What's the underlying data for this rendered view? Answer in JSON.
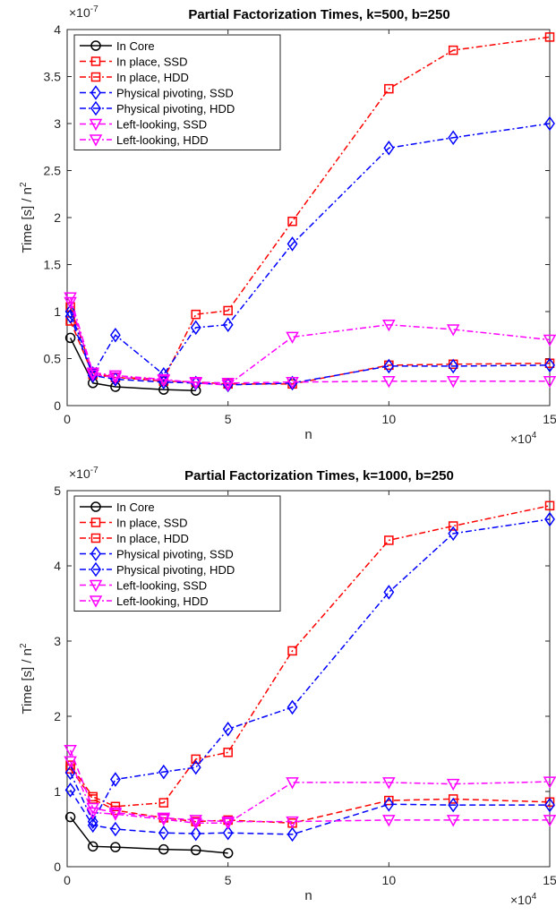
{
  "chart_data": [
    {
      "type": "line",
      "title": "Partial Factorization Times, k=500, b=250",
      "xlabel": "n",
      "ylabel": "Time [s] / n^2",
      "x_exponent": "×10^4",
      "y_exponent": "×10^-7",
      "xlim": [
        0,
        15
      ],
      "ylim": [
        0,
        4
      ],
      "xticks": [
        0,
        5,
        10,
        15
      ],
      "yticks": [
        0,
        0.5,
        1,
        1.5,
        2,
        2.5,
        3,
        3.5,
        4
      ],
      "legend_position": "top-left",
      "grid": false,
      "series": [
        {
          "name": "In Core",
          "color": "#000000",
          "dash": "solid",
          "marker": "circle",
          "x": [
            0.1,
            0.8,
            1.5,
            3,
            4
          ],
          "y": [
            0.72,
            0.24,
            0.2,
            0.17,
            0.16
          ]
        },
        {
          "name": "In place, SSD",
          "color": "#ff0000",
          "dash": "dashed",
          "marker": "square",
          "x": [
            0.1,
            0.8,
            1.5,
            3,
            4,
            5,
            7,
            10,
            12,
            15
          ],
          "y": [
            0.9,
            0.33,
            0.3,
            0.26,
            0.25,
            0.23,
            0.23,
            0.43,
            0.44,
            0.45
          ]
        },
        {
          "name": "In place, HDD",
          "color": "#ff0000",
          "dash": "dashdot",
          "marker": "square",
          "x": [
            0.1,
            0.8,
            1.5,
            3,
            4,
            5,
            7,
            10,
            12,
            15
          ],
          "y": [
            1.05,
            0.35,
            0.3,
            0.28,
            0.97,
            1.01,
            1.96,
            3.37,
            3.78,
            3.92
          ]
        },
        {
          "name": "Physical pivoting, SSD",
          "color": "#0000ff",
          "dash": "dashed",
          "marker": "diamond",
          "x": [
            0.1,
            0.8,
            1.5,
            3,
            4,
            5,
            7,
            10,
            12,
            15
          ],
          "y": [
            0.95,
            0.32,
            0.28,
            0.25,
            0.24,
            0.22,
            0.24,
            0.42,
            0.42,
            0.43
          ]
        },
        {
          "name": "Physical pivoting, HDD",
          "color": "#0000ff",
          "dash": "dashdot",
          "marker": "diamond",
          "x": [
            0.1,
            0.8,
            1.5,
            3,
            4,
            5,
            7,
            10,
            12,
            15
          ],
          "y": [
            1.0,
            0.34,
            0.75,
            0.33,
            0.83,
            0.86,
            1.72,
            2.74,
            2.85,
            3.0
          ]
        },
        {
          "name": "Left-looking, SSD",
          "color": "#ff00ff",
          "dash": "dashed",
          "marker": "triangle-down",
          "x": [
            0.1,
            0.8,
            1.5,
            3,
            4,
            5,
            7,
            10,
            12,
            15
          ],
          "y": [
            1.1,
            0.33,
            0.3,
            0.27,
            0.25,
            0.24,
            0.25,
            0.26,
            0.26,
            0.26
          ]
        },
        {
          "name": "Left-looking, HDD",
          "color": "#ff00ff",
          "dash": "dashdot",
          "marker": "triangle-down",
          "x": [
            0.1,
            0.8,
            1.5,
            3,
            4,
            5,
            7,
            10,
            12,
            15
          ],
          "y": [
            1.15,
            0.35,
            0.32,
            0.28,
            0.24,
            0.22,
            0.73,
            0.86,
            0.81,
            0.7
          ]
        }
      ]
    },
    {
      "type": "line",
      "title": "Partial Factorization Times, k=1000, b=250",
      "xlabel": "n",
      "ylabel": "Time [s] / n^2",
      "x_exponent": "×10^4",
      "y_exponent": "×10^-7",
      "xlim": [
        0,
        15
      ],
      "ylim": [
        0,
        5
      ],
      "xticks": [
        0,
        5,
        10,
        15
      ],
      "yticks": [
        0,
        1,
        2,
        3,
        4,
        5
      ],
      "legend_position": "top-left",
      "grid": false,
      "series": [
        {
          "name": "In Core",
          "color": "#000000",
          "dash": "solid",
          "marker": "circle",
          "x": [
            0.1,
            0.8,
            1.5,
            3,
            4,
            5
          ],
          "y": [
            0.66,
            0.27,
            0.26,
            0.23,
            0.22,
            0.18
          ]
        },
        {
          "name": "In place, SSD",
          "color": "#ff0000",
          "dash": "dashed",
          "marker": "square",
          "x": [
            0.1,
            0.8,
            1.5,
            3,
            4,
            5,
            7,
            10,
            12,
            15
          ],
          "y": [
            1.3,
            0.9,
            0.75,
            0.65,
            0.6,
            0.62,
            0.58,
            0.88,
            0.9,
            0.86
          ]
        },
        {
          "name": "In place, HDD",
          "color": "#ff0000",
          "dash": "dashdot",
          "marker": "square",
          "x": [
            0.1,
            0.8,
            1.5,
            3,
            4,
            5,
            7,
            10,
            12,
            15
          ],
          "y": [
            1.35,
            0.93,
            0.8,
            0.85,
            1.43,
            1.52,
            2.87,
            4.34,
            4.53,
            4.8
          ]
        },
        {
          "name": "Physical pivoting, SSD",
          "color": "#0000ff",
          "dash": "dashed",
          "marker": "diamond",
          "x": [
            0.1,
            0.8,
            1.5,
            3,
            4,
            5,
            7,
            10,
            12,
            15
          ],
          "y": [
            1.02,
            0.55,
            0.5,
            0.45,
            0.44,
            0.45,
            0.43,
            0.83,
            0.82,
            0.82
          ]
        },
        {
          "name": "Physical pivoting, HDD",
          "color": "#0000ff",
          "dash": "dashdot",
          "marker": "diamond",
          "x": [
            0.1,
            0.8,
            1.5,
            3,
            4,
            5,
            7,
            10,
            12,
            15
          ],
          "y": [
            1.25,
            0.6,
            1.16,
            1.26,
            1.32,
            1.83,
            2.12,
            3.65,
            4.43,
            4.62
          ]
        },
        {
          "name": "Left-looking, SSD",
          "color": "#ff00ff",
          "dash": "dashed",
          "marker": "triangle-down",
          "x": [
            0.1,
            0.8,
            1.5,
            3,
            4,
            5,
            7,
            10,
            12,
            15
          ],
          "y": [
            1.55,
            0.78,
            0.72,
            0.65,
            0.62,
            0.6,
            0.6,
            0.62,
            0.62,
            0.62
          ]
        },
        {
          "name": "Left-looking, HDD",
          "color": "#ff00ff",
          "dash": "dashdot",
          "marker": "triangle-down",
          "x": [
            0.1,
            0.8,
            1.5,
            3,
            4,
            5,
            7,
            10,
            12,
            15
          ],
          "y": [
            1.4,
            0.72,
            0.7,
            0.63,
            0.58,
            0.58,
            1.12,
            1.12,
            1.1,
            1.13
          ]
        }
      ]
    }
  ]
}
